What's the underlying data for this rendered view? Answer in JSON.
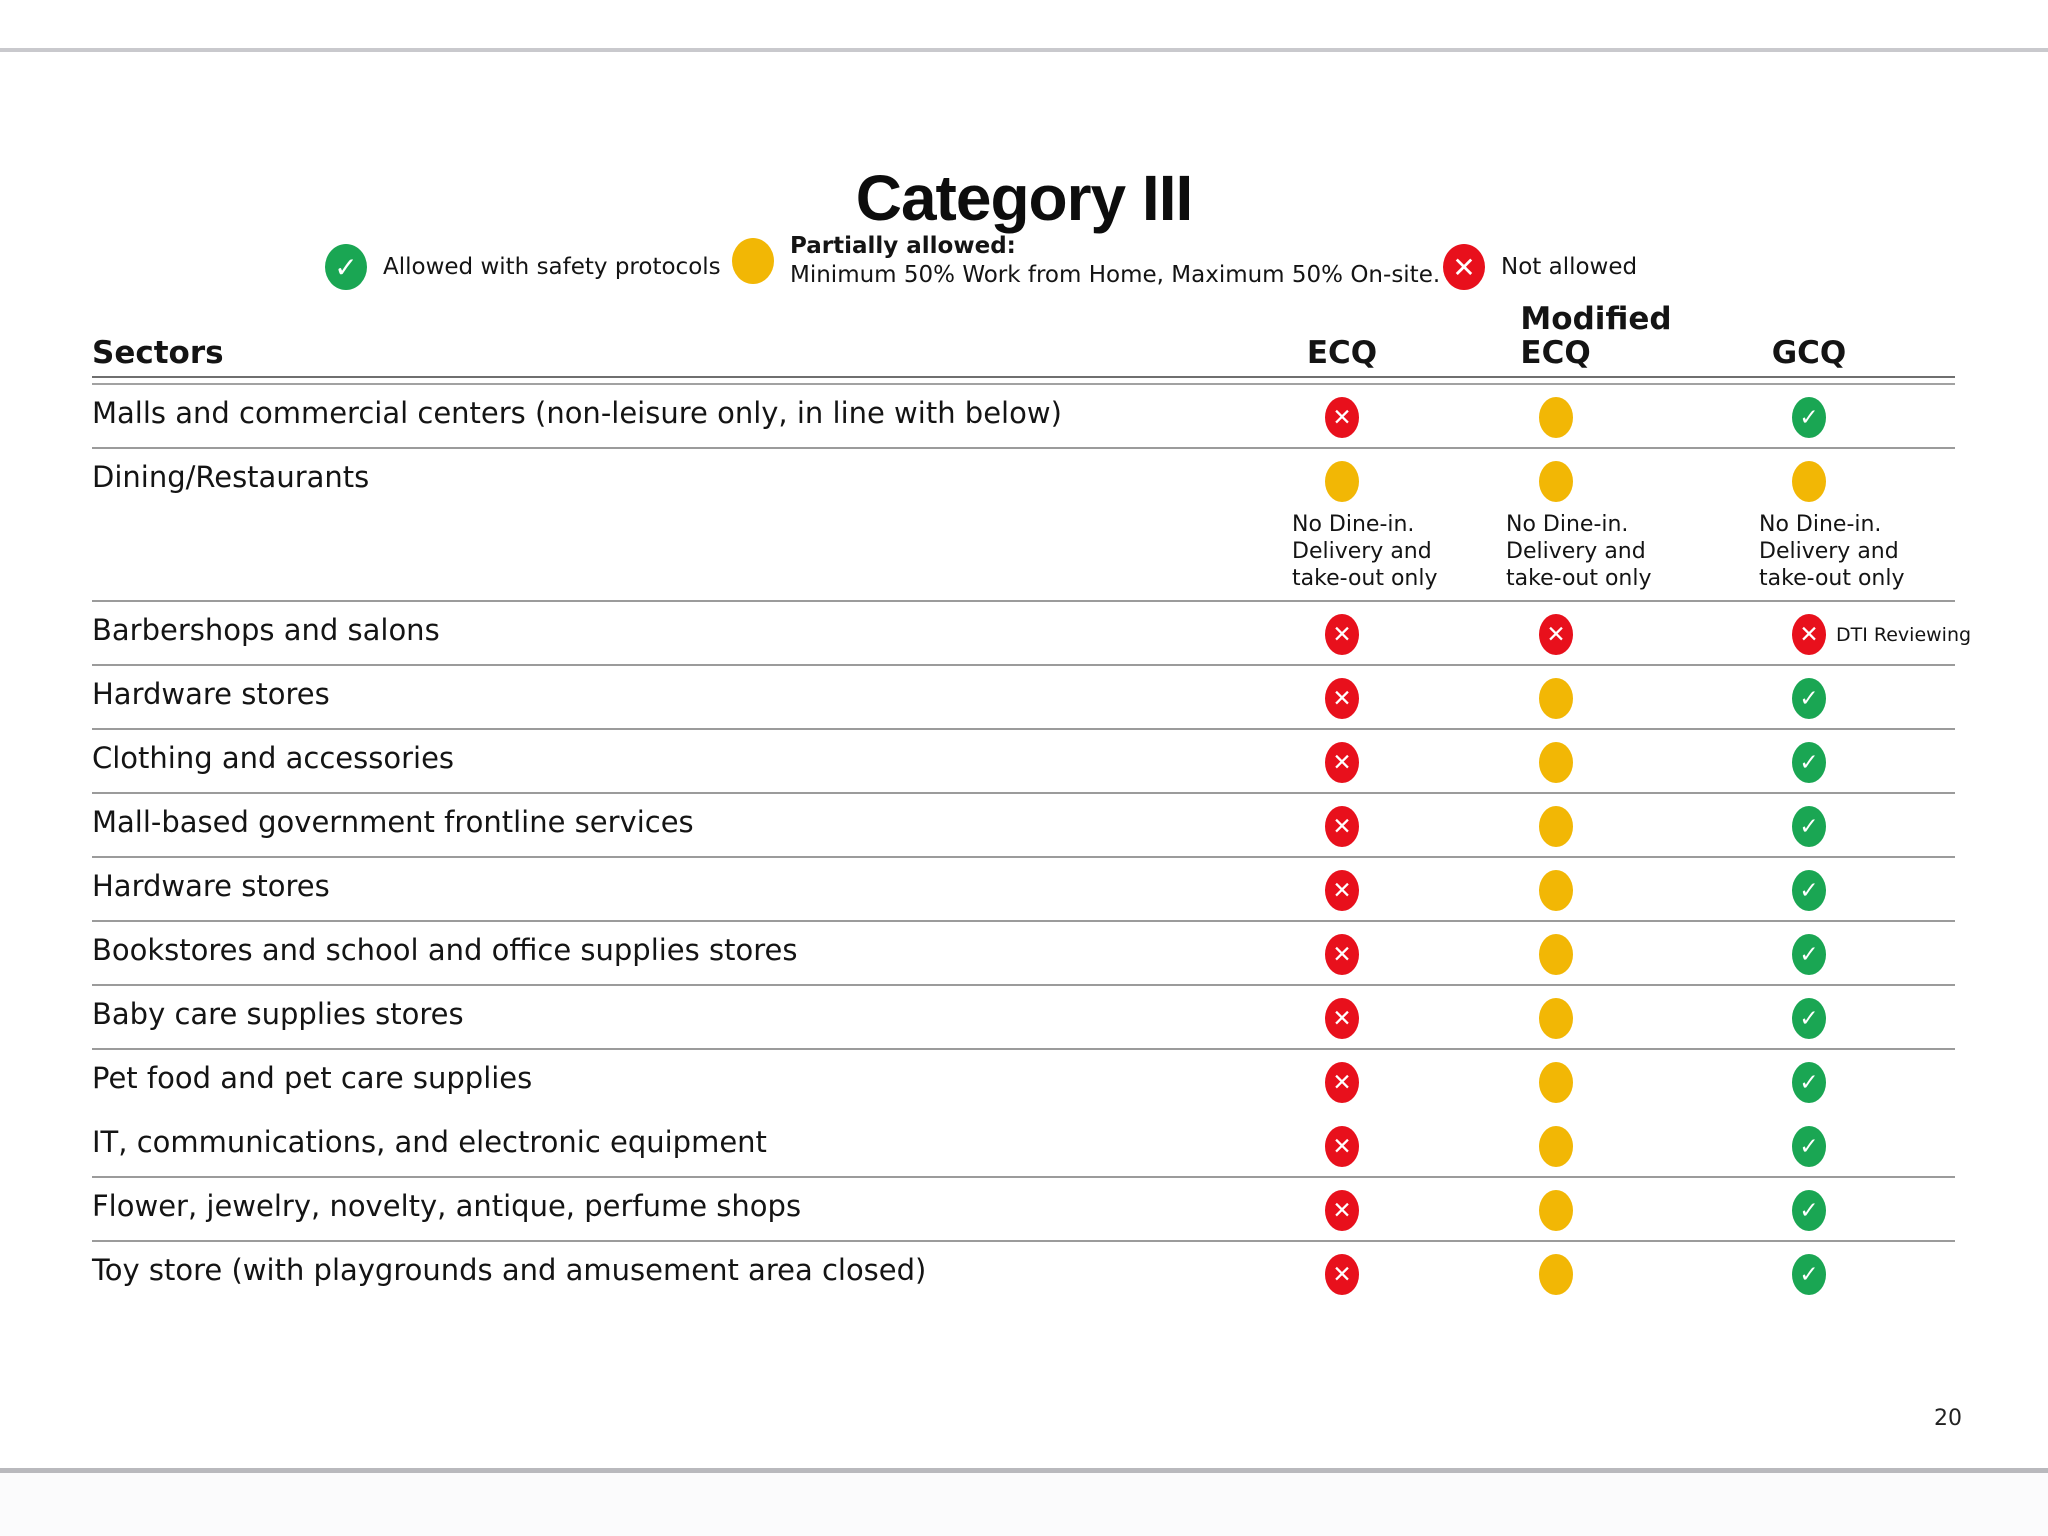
{
  "page": {
    "title": "Category III",
    "page_number": "20"
  },
  "status_colors": {
    "check": "#1aa653",
    "partial": "#f2b705",
    "cross": "#e8101c"
  },
  "legend": {
    "allowed": {
      "icon": "check-circle-icon",
      "label": "Allowed with safety protocols"
    },
    "partial": {
      "icon": "partial-circle-icon",
      "title": "Partially allowed:",
      "desc": "Minimum 50% Work from Home,  Maximum 50% On-site."
    },
    "not_allowed": {
      "icon": "cross-circle-icon",
      "label": "Not allowed"
    }
  },
  "columns": {
    "sectors": "Sectors",
    "ecq": "ECQ",
    "modified_ecq": [
      "Modified",
      "ECQ"
    ],
    "gcq": "GCQ"
  },
  "rows": [
    {
      "sector": "Malls and commercial centers (non-leisure only, in line with below)",
      "ecq": "cross",
      "modified_ecq": "partial",
      "gcq": "check",
      "divider_after": true
    },
    {
      "sector": "Dining/Restaurants",
      "ecq": "partial",
      "modified_ecq": "partial",
      "gcq": "partial",
      "notes": {
        "ecq": [
          "No Dine-in.",
          "Delivery and",
          "take-out only"
        ],
        "modified_ecq": [
          "No Dine-in.",
          "Delivery and",
          "take-out only"
        ],
        "gcq": [
          "No Dine-in.",
          "Delivery and",
          "take-out only"
        ]
      },
      "divider_after": true
    },
    {
      "sector": "Barbershops and salons",
      "ecq": "cross",
      "modified_ecq": "cross",
      "gcq": "cross",
      "gcq_side_note": "DTI Reviewing",
      "divider_after": true
    },
    {
      "sector": "Hardware stores",
      "ecq": "cross",
      "modified_ecq": "partial",
      "gcq": "check",
      "divider_after": true
    },
    {
      "sector": "Clothing and accessories",
      "ecq": "cross",
      "modified_ecq": "partial",
      "gcq": "check",
      "divider_after": true
    },
    {
      "sector": "Mall-based government frontline services",
      "ecq": "cross",
      "modified_ecq": "partial",
      "gcq": "check",
      "divider_after": true
    },
    {
      "sector": "Hardware stores",
      "ecq": "cross",
      "modified_ecq": "partial",
      "gcq": "check",
      "divider_after": true
    },
    {
      "sector": "Bookstores and school and office supplies stores",
      "ecq": "cross",
      "modified_ecq": "partial",
      "gcq": "check",
      "divider_after": true
    },
    {
      "sector": "Baby care supplies stores",
      "ecq": "cross",
      "modified_ecq": "partial",
      "gcq": "check",
      "divider_after": true
    },
    {
      "sector": "Pet food and pet care supplies",
      "ecq": "cross",
      "modified_ecq": "partial",
      "gcq": "check",
      "divider_after": false
    },
    {
      "sector": "IT, communications, and electronic equipment",
      "ecq": "cross",
      "modified_ecq": "partial",
      "gcq": "check",
      "divider_after": true
    },
    {
      "sector": "Flower, jewelry, novelty, antique, perfume shops",
      "ecq": "cross",
      "modified_ecq": "partial",
      "gcq": "check",
      "divider_after": true
    },
    {
      "sector": "Toy store (with playgrounds and amusement area closed)",
      "ecq": "cross",
      "modified_ecq": "partial",
      "gcq": "check",
      "divider_after": false
    }
  ]
}
